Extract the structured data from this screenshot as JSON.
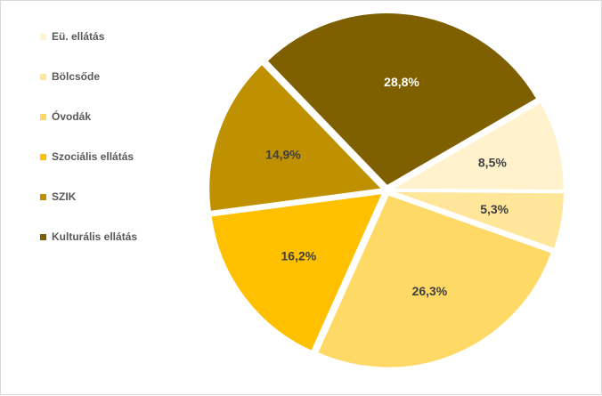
{
  "chart_data": {
    "type": "pie",
    "categories": [
      "Eü. ellátás",
      "Bölcsőde",
      "Óvodák",
      "Szociális ellátás",
      "SZIK",
      "Kulturális ellátás"
    ],
    "values": [
      8.5,
      5.3,
      26.3,
      16.2,
      14.9,
      28.8
    ],
    "value_labels": [
      "8,5%",
      "5,3%",
      "26,3%",
      "16,2%",
      "14,9%",
      "28,8%"
    ],
    "colors": [
      "#fff2cc",
      "#ffe699",
      "#ffd966",
      "#ffc000",
      "#bf9000",
      "#7f6000"
    ],
    "label_colors": [
      "#404040",
      "#404040",
      "#404040",
      "#404040",
      "#404040",
      "#ffffff"
    ],
    "exploded_slices": "all",
    "legend_position": "left"
  }
}
